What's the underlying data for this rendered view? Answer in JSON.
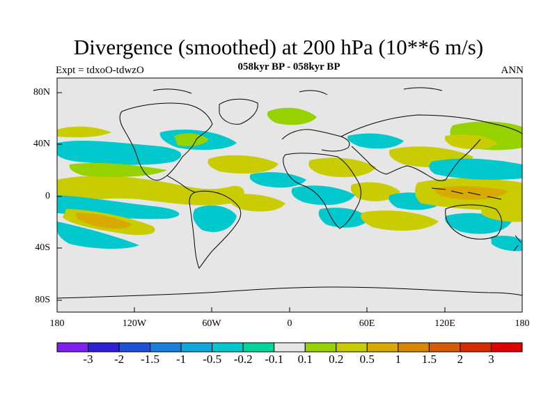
{
  "title": "Divergence (smoothed) at 200 hPa (10**6 m/s)",
  "subtitle": "058kyr BP - 058kyr BP",
  "left_label": "Expt = tdxoO-tdwzO",
  "right_label": "ANN",
  "lat_labels": [
    "80N",
    "40N",
    "0",
    "40S",
    "80S"
  ],
  "lon_labels": [
    "180",
    "120W",
    "60W",
    "0",
    "60E",
    "120E",
    "180"
  ],
  "colorbar": {
    "labels": [
      "-3",
      "-2",
      "-1.5",
      "-1",
      "-0.5",
      "-0.2",
      "-0.1",
      "0.1",
      "0.2",
      "0.5",
      "1",
      "1.5",
      "2",
      "3"
    ],
    "colors": [
      "#7f1ff0",
      "#2f1fd8",
      "#1e50d8",
      "#1b7ed8",
      "#10a8d8",
      "#00c8cc",
      "#00d49a",
      "#e6e6e6",
      "#96d200",
      "#c8cc00",
      "#d8aa00",
      "#d88800",
      "#d85a00",
      "#d82a00",
      "#e00000"
    ]
  },
  "colors": {
    "background": "#e6e6e6",
    "coast": "#000000",
    "pos_low": "#96d200",
    "pos_mid": "#c8cc00",
    "pos_high": "#d8aa00",
    "neg_low": "#00d49a",
    "neg_mid": "#00c8cc",
    "neg_high": "#10a8d8"
  }
}
